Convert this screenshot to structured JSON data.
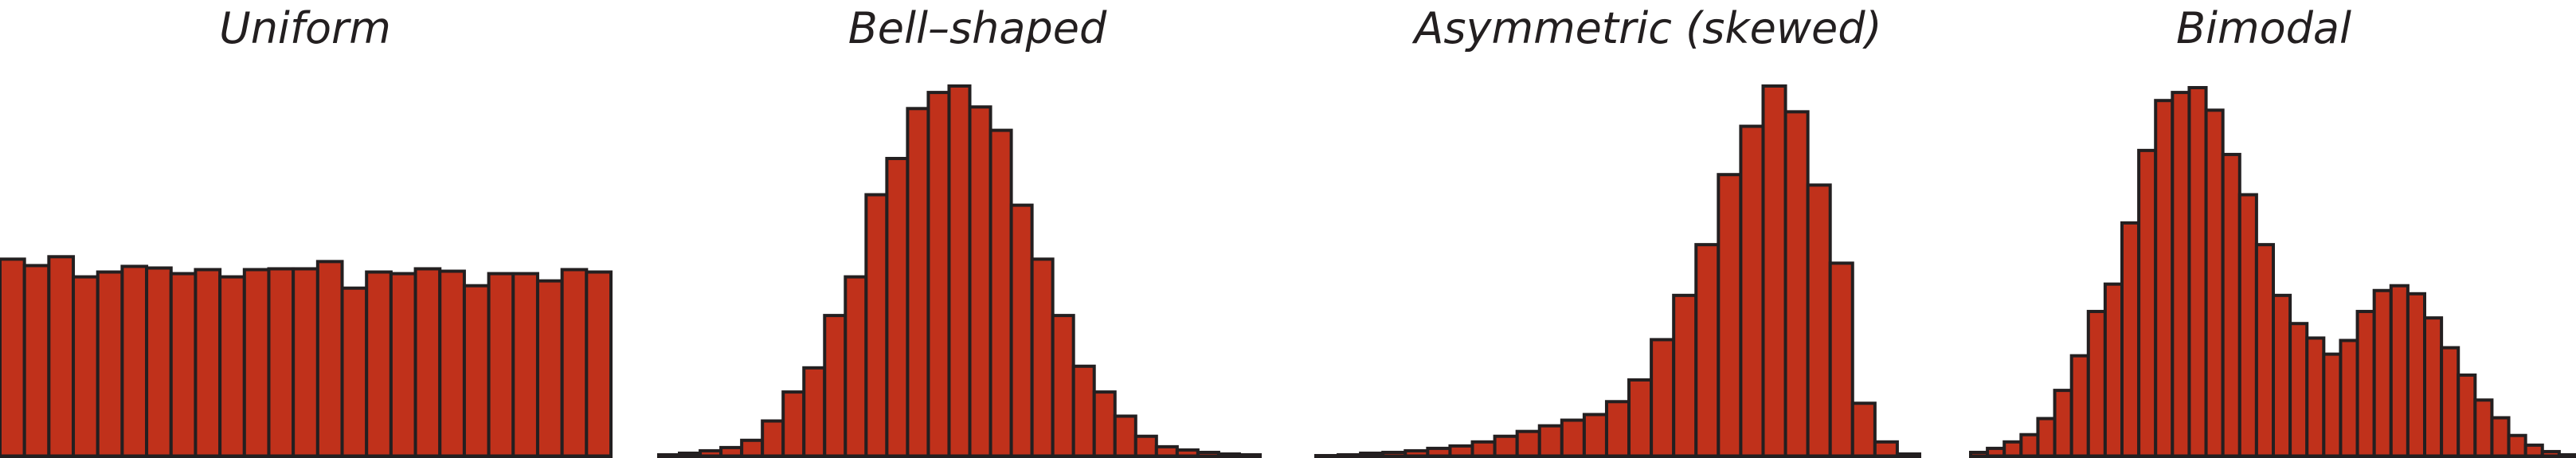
{
  "chart_data": [
    {
      "type": "bar",
      "title": "Uniform",
      "xlabel": "",
      "ylabel": "",
      "grid": false,
      "values": [
        245,
        237,
        248,
        223,
        229,
        236,
        234,
        227,
        232,
        223,
        232,
        233,
        233,
        242,
        209,
        229,
        227,
        233,
        230,
        212,
        227,
        227,
        218,
        232,
        229
      ],
      "ylim": [
        0,
        460
      ]
    },
    {
      "type": "bar",
      "title": "Bell–shaped",
      "xlabel": "",
      "ylabel": "",
      "grid": false,
      "values": [
        2,
        4,
        7,
        11,
        20,
        44,
        80,
        110,
        175,
        223,
        325,
        370,
        432,
        452,
        460,
        434,
        405,
        312,
        245,
        175,
        112,
        80,
        50,
        25,
        12,
        8,
        5,
        3,
        2
      ],
      "ylim": [
        0,
        460
      ]
    },
    {
      "type": "bar",
      "title": "Asymmetric (skewed)",
      "xlabel": "",
      "ylabel": "",
      "grid": false,
      "values": [
        1,
        2,
        4,
        5,
        7,
        10,
        13,
        18,
        25,
        31,
        38,
        45,
        52,
        68,
        95,
        145,
        200,
        263,
        350,
        410,
        460,
        428,
        337,
        240,
        66,
        18,
        3
      ],
      "ylim": [
        0,
        460
      ]
    },
    {
      "type": "bar",
      "title": "Bimodal",
      "xlabel": "",
      "ylabel": "",
      "grid": false,
      "values": [
        5,
        10,
        18,
        27,
        47,
        82,
        125,
        180,
        214,
        290,
        380,
        442,
        452,
        458,
        430,
        375,
        325,
        263,
        200,
        165,
        147,
        127,
        144,
        180,
        206,
        212,
        202,
        172,
        135,
        101,
        70,
        48,
        26,
        14,
        6,
        2
      ],
      "ylim": [
        0,
        460
      ]
    }
  ],
  "colors": {
    "bar_fill": "#c0311b",
    "bar_edge": "#231f20",
    "axis": "#231f20",
    "title": "#231f20"
  }
}
